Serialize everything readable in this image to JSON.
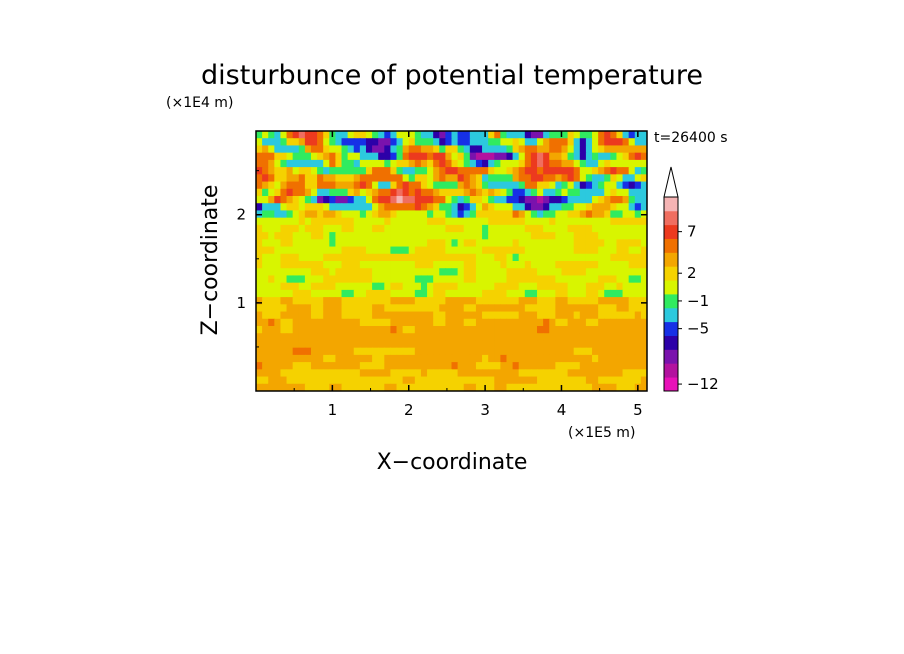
{
  "chart_data": {
    "type": "heatmap",
    "title": "disturbunce of potential temperature",
    "time_label": "t=26400 s",
    "xlabel": "X−coordinate",
    "ylabel": "Z−coordinate",
    "x_unit_label": "(×1E5 m)",
    "y_unit_label": "(×1E4 m)",
    "xlim": [
      0,
      5.12
    ],
    "ylim": [
      0,
      2.95
    ],
    "x_ticks": [
      {
        "value": 1,
        "label": "1"
      },
      {
        "value": 2,
        "label": "2"
      },
      {
        "value": 3,
        "label": "3"
      },
      {
        "value": 4,
        "label": "4"
      },
      {
        "value": 5,
        "label": "5"
      }
    ],
    "y_ticks": [
      {
        "value": 1,
        "label": "1"
      },
      {
        "value": 2,
        "label": "2"
      }
    ],
    "colorbar": {
      "colors": [
        "#e811b8",
        "#b3129f",
        "#7a12ad",
        "#2c00a8",
        "#1630e6",
        "#2cc9de",
        "#30eb60",
        "#d8f500",
        "#f5d200",
        "#f3a600",
        "#f07000",
        "#ec3a1e",
        "#f06e60",
        "#f5b4b4"
      ],
      "labels": [
        {
          "value": -12,
          "text": "−12",
          "level_index": 0
        },
        {
          "value": -5,
          "text": "−5",
          "level_index": 4
        },
        {
          "value": -1,
          "text": "−1",
          "level_index": 6
        },
        {
          "value": 2,
          "text": "2",
          "level_index": 8
        },
        {
          "value": 7,
          "text": "7",
          "level_index": 11
        }
      ],
      "extend": "max"
    },
    "field_description": "Field shows nearly uniform warm anomalies near the surface and a turbulent layer above z=2E4 m with alternating strong positive and negative anomalies."
  }
}
